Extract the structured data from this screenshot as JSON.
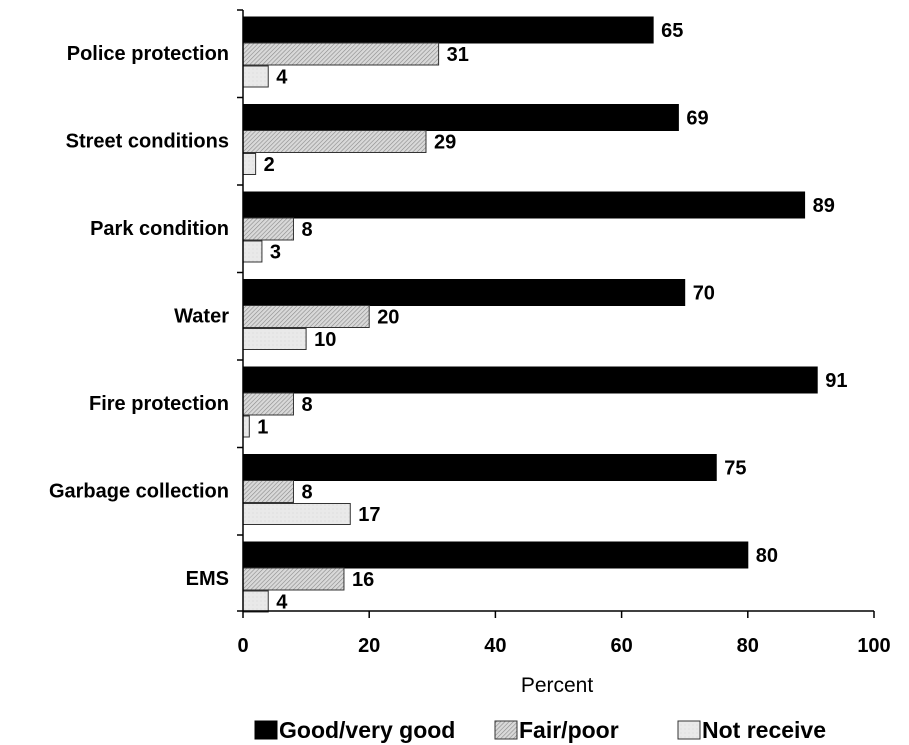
{
  "chart_data": {
    "type": "bar",
    "orientation": "horizontal",
    "categories": [
      "Police protection",
      "Street conditions",
      "Park condition",
      "Water",
      "Fire protection",
      "Garbage collection",
      "EMS"
    ],
    "series": [
      {
        "name": "Good/very good",
        "values": [
          65,
          69,
          89,
          70,
          91,
          75,
          80
        ],
        "color": "#000000",
        "pattern": "solid"
      },
      {
        "name": "Fair/poor",
        "values": [
          31,
          29,
          8,
          20,
          8,
          8,
          16
        ],
        "color": "#c8c8c8",
        "pattern": "hatched"
      },
      {
        "name": "Not receive",
        "values": [
          4,
          2,
          3,
          10,
          1,
          17,
          4
        ],
        "color": "#e6e6e6",
        "pattern": "light"
      }
    ],
    "xlabel": "Percent",
    "ylabel": "",
    "xlim": [
      0,
      100
    ],
    "xticks": [
      "0",
      "20",
      "40",
      "60",
      "80",
      "100"
    ],
    "legend_position": "bottom",
    "grid": false
  }
}
